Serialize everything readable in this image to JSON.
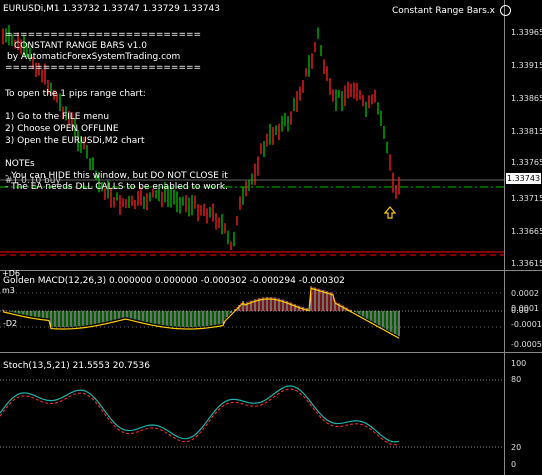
{
  "header": {
    "symbol_line": "EURUSDi,M1  1.33732 1.33747 1.33729 1.33743",
    "indicator_name": "Constant Range Bars.x"
  },
  "info": {
    "divider1": "==========================",
    "title": "CONSTANT RANGE BARS v1.0",
    "site": "by AutomaticForexSystemTrading.com",
    "divider2": "==========================",
    "open_line": "To open the 1 pips range chart:",
    "step1": "1) Go to the FILE menu",
    "step2": "2) Choose OPEN OFFLINE",
    "step3": "3) Open the EURUSDi,M2 chart",
    "notes_title": "NOTEs",
    "note1": "- You can HIDE this window, but DO NOT CLOSE it",
    "note2": "- The EA needs DLL CALLS to be enabled to work.",
    "order_label": "#1 0.10 buy"
  },
  "price_axis": {
    "labels": [
      "1.33965",
      "1.33915",
      "1.33865",
      "1.33815",
      "1.33765",
      "1.33743",
      "1.33715",
      "1.33665",
      "1.33615"
    ],
    "current_price": "1.33743"
  },
  "macd": {
    "title": "Golden MACD(12,26,3) 0.000000 0.000000 -0.000302 -0.000294 -0.000302",
    "left_tag1": "+D6",
    "left_tag2": "m3",
    "left_tag3": "-D2",
    "axis_labels": [
      "0.0002",
      "0.0001",
      "0.00",
      "-0.0001",
      "-0.0005"
    ]
  },
  "stoch": {
    "title": "Stoch(13,5,21) 21.5553 20.7536",
    "axis_labels": [
      "100",
      "80",
      "20",
      "0"
    ]
  },
  "colors": {
    "bull": "#00c000",
    "bear": "#ff2020",
    "dash_green": "#00c000",
    "dash_red": "#ff0000",
    "arrow": "#ffcc00",
    "stoch_main": "#20b2aa",
    "stoch_signal": "#ff3030"
  },
  "icons": [
    "smiley-icon",
    "buy-arrow-icon"
  ]
}
